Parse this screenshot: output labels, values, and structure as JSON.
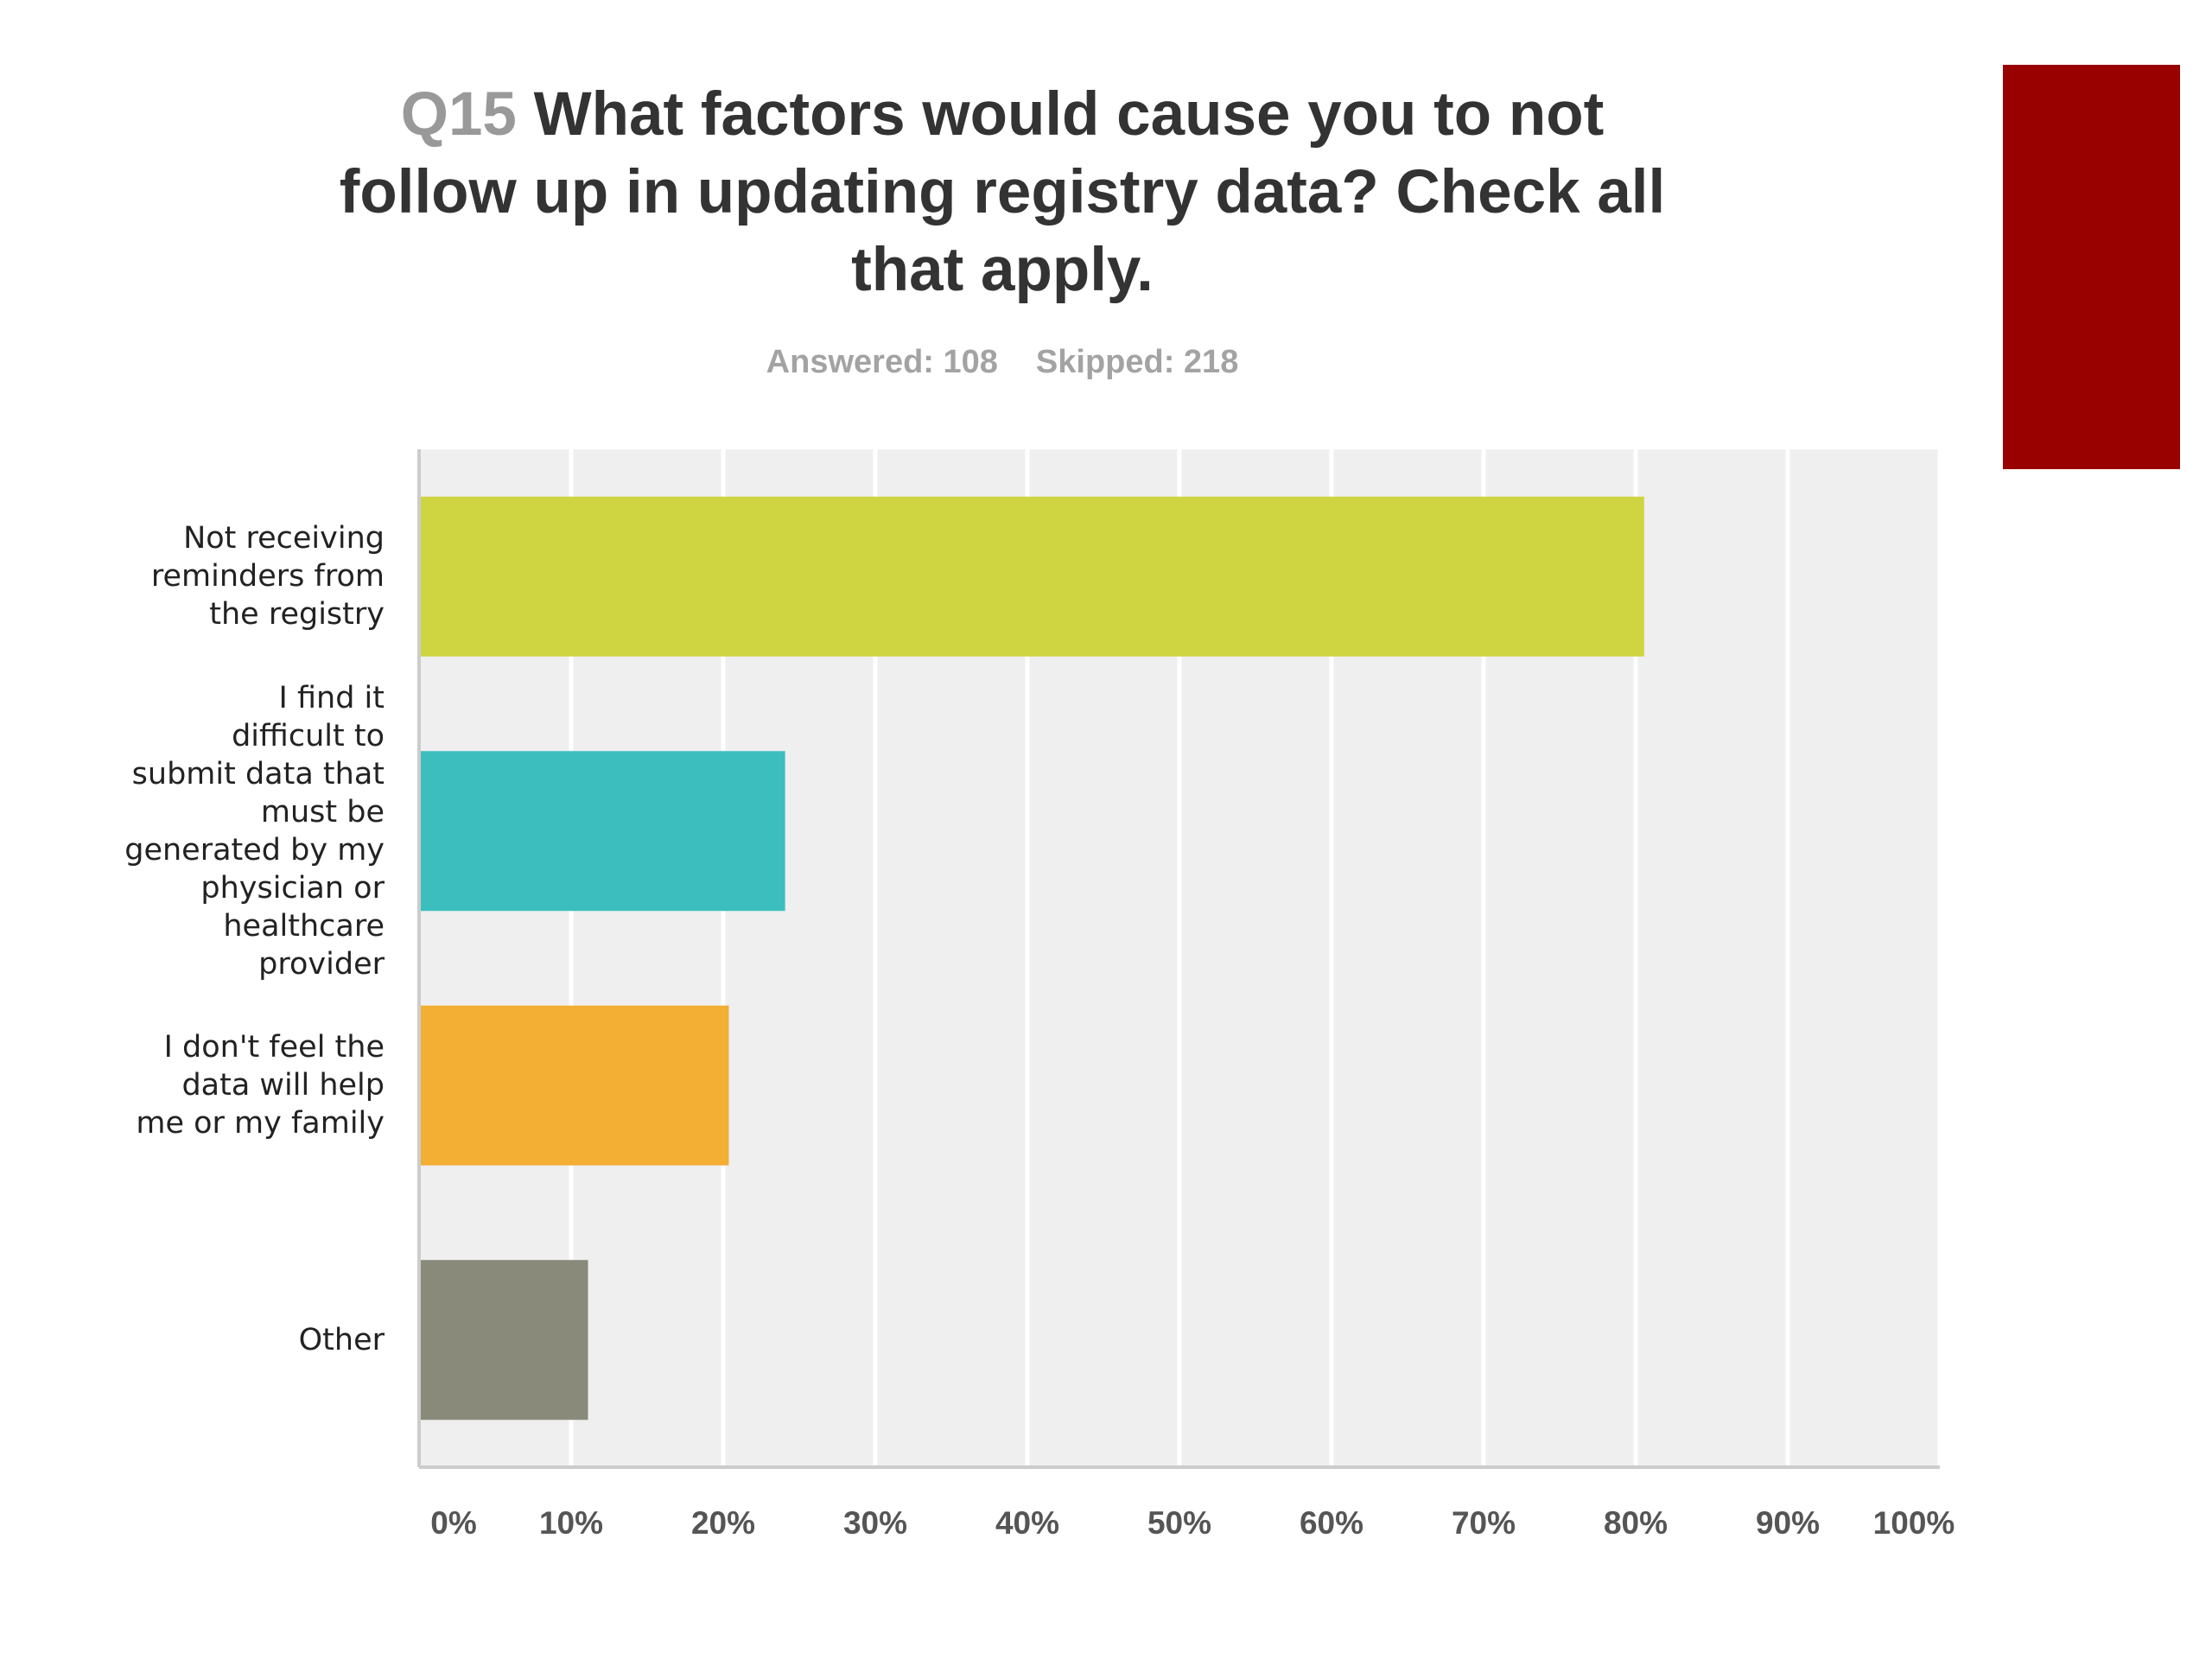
{
  "title": {
    "qnum": "Q15",
    "text": "What factors would cause you to not follow up in updating registry data? Check all that apply."
  },
  "stats": {
    "answered": "Answered: 108",
    "skipped": "Skipped: 218"
  },
  "colors": {
    "accent_block": "#990000",
    "plot_background": "#efefef",
    "gridline": "#ffffff"
  },
  "chart_data": {
    "type": "bar",
    "orientation": "horizontal",
    "title": "Q15 What factors would cause you to not follow up in updating registry data? Check all that apply.",
    "categories": [
      "Not receiving reminders from the registry",
      "I find it difficult to submit data that must be generated by my physician or healthcare provider",
      "I don't feel the data will help me or my family",
      "Other"
    ],
    "values": [
      80.56,
      24.07,
      20.37,
      11.11
    ],
    "bar_colors": [
      "#cfd441",
      "#3cbdbe",
      "#f3ae34",
      "#8a8a7a"
    ],
    "xlim": [
      0,
      100
    ],
    "xticks": [
      "0%",
      "10%",
      "20%",
      "30%",
      "40%",
      "50%",
      "60%",
      "70%",
      "80%",
      "90%",
      "100%"
    ],
    "grid": true,
    "legend": "none"
  }
}
